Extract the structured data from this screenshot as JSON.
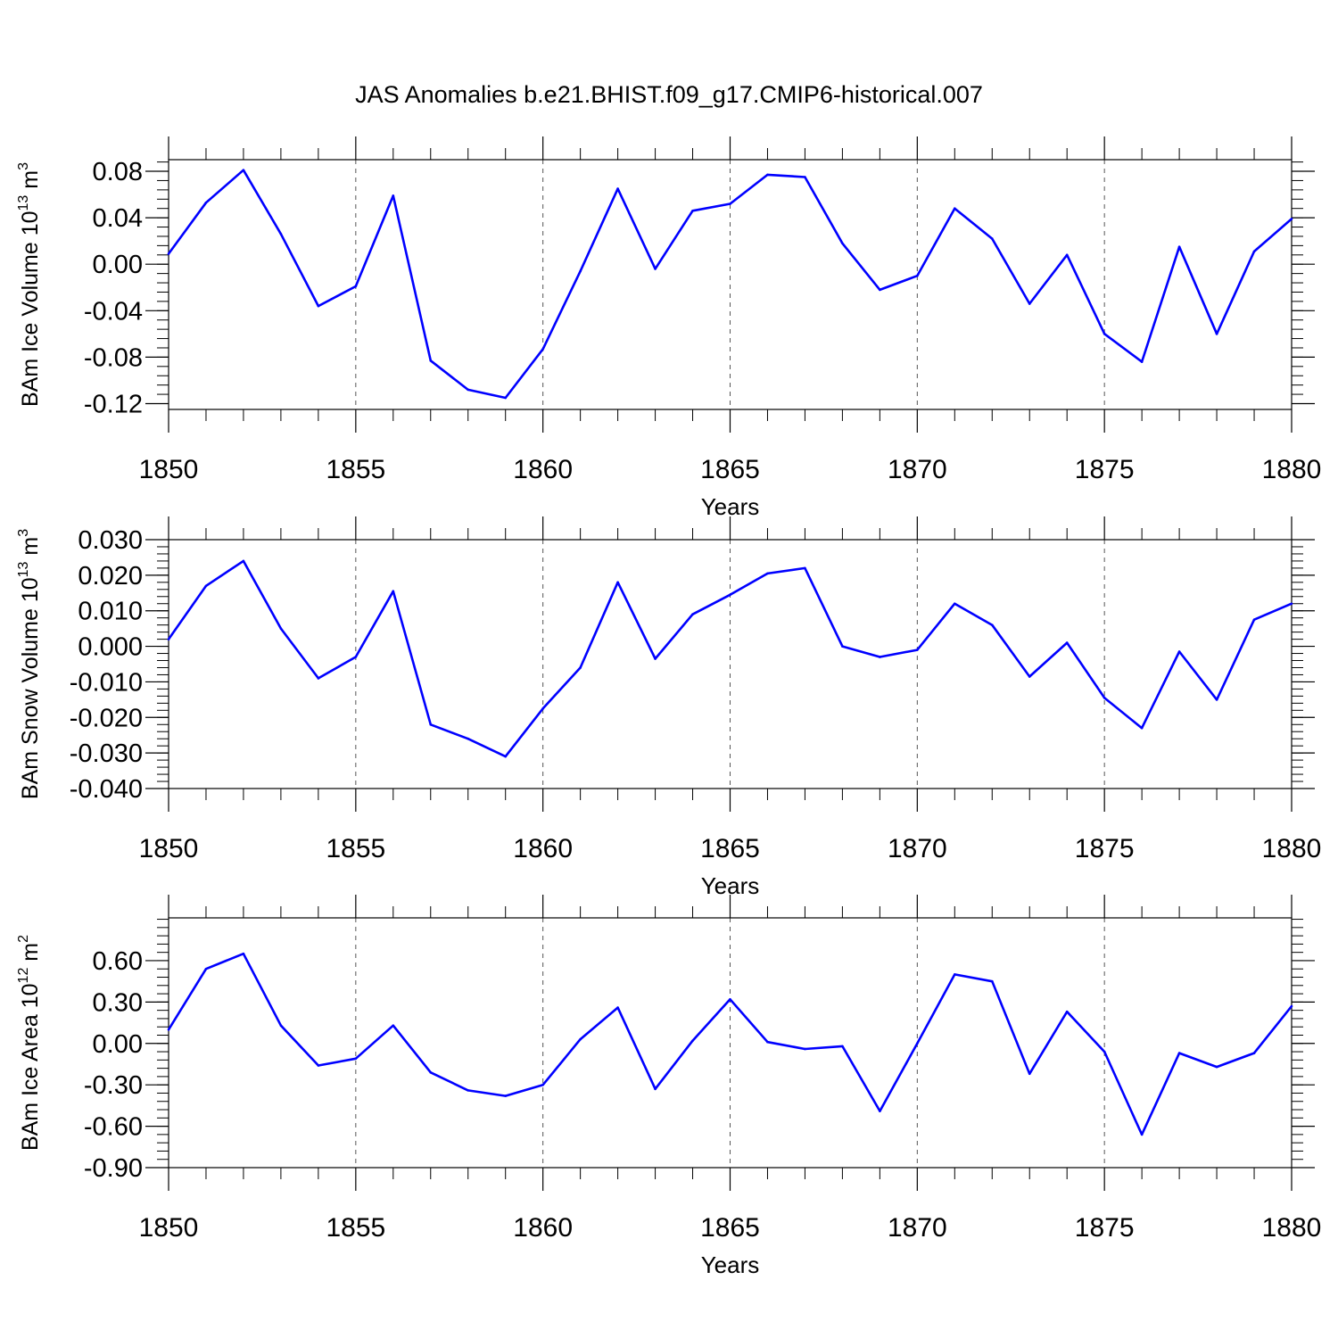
{
  "title": "JAS Anomalies b.e21.BHIST.f09_g17.CMIP6-historical.007",
  "colors": {
    "line": "#0000ff",
    "axis": "#000000",
    "grid": "#555555",
    "background": "#ffffff"
  },
  "chart_data": [
    {
      "type": "line",
      "ylabel_main": "BAm Ice Volume 10",
      "ylabel_exp": "13",
      "ylabel_unit": " m",
      "ylabel_unit_exp": "3",
      "xlabel": "Years",
      "xlim": [
        1850,
        1880
      ],
      "ylim": [
        -0.125,
        0.09
      ],
      "x_tick_values": [
        1850,
        1855,
        1860,
        1865,
        1870,
        1875,
        1880
      ],
      "x_tick_labels": [
        "1850",
        "1855",
        "1860",
        "1865",
        "1870",
        "1875",
        "1880"
      ],
      "y_tick_values": [
        -0.12,
        -0.08,
        -0.04,
        0.0,
        0.04,
        0.08
      ],
      "y_tick_labels": [
        "-0.12",
        "-0.08",
        "-0.04",
        "0.00",
        "0.04",
        "0.08"
      ],
      "y_minor_step": 0.008,
      "grid": "vertical dashed at major x ticks",
      "x": [
        1850,
        1851,
        1852,
        1853,
        1854,
        1855,
        1856,
        1857,
        1858,
        1859,
        1860,
        1861,
        1862,
        1863,
        1864,
        1865,
        1866,
        1867,
        1868,
        1869,
        1870,
        1871,
        1872,
        1873,
        1874,
        1875,
        1876,
        1877,
        1878,
        1879,
        1880
      ],
      "values": [
        0.009,
        0.053,
        0.081,
        0.026,
        -0.036,
        -0.019,
        0.059,
        -0.083,
        -0.108,
        -0.115,
        -0.073,
        -0.006,
        0.065,
        -0.004,
        0.046,
        0.052,
        0.077,
        0.075,
        0.018,
        -0.022,
        -0.01,
        0.048,
        0.022,
        -0.034,
        0.008,
        -0.06,
        -0.084,
        0.015,
        -0.06,
        0.011,
        0.039
      ]
    },
    {
      "type": "line",
      "ylabel_main": "BAm Snow Volume 10",
      "ylabel_exp": "13",
      "ylabel_unit": " m",
      "ylabel_unit_exp": "3",
      "xlabel": "Years",
      "xlim": [
        1850,
        1880
      ],
      "ylim": [
        -0.04,
        0.03
      ],
      "x_tick_values": [
        1850,
        1855,
        1860,
        1865,
        1870,
        1875,
        1880
      ],
      "x_tick_labels": [
        "1850",
        "1855",
        "1860",
        "1865",
        "1870",
        "1875",
        "1880"
      ],
      "y_tick_values": [
        -0.04,
        -0.03,
        -0.02,
        -0.01,
        0.0,
        0.01,
        0.02,
        0.03
      ],
      "y_tick_labels": [
        "-0.040",
        "-0.030",
        "-0.020",
        "-0.010",
        "0.000",
        "0.010",
        "0.020",
        "0.030"
      ],
      "y_minor_step": 0.002,
      "grid": "vertical dashed at major x ticks",
      "x": [
        1850,
        1851,
        1852,
        1853,
        1854,
        1855,
        1856,
        1857,
        1858,
        1859,
        1860,
        1861,
        1862,
        1863,
        1864,
        1865,
        1866,
        1867,
        1868,
        1869,
        1870,
        1871,
        1872,
        1873,
        1874,
        1875,
        1876,
        1877,
        1878,
        1879,
        1880
      ],
      "values": [
        0.002,
        0.017,
        0.024,
        0.005,
        -0.009,
        -0.003,
        0.0155,
        -0.022,
        -0.026,
        -0.031,
        -0.0175,
        -0.006,
        0.018,
        -0.0035,
        0.009,
        0.0145,
        0.0205,
        0.022,
        0.0,
        -0.003,
        -0.001,
        0.012,
        0.006,
        -0.0085,
        0.001,
        -0.0145,
        -0.023,
        -0.0015,
        -0.015,
        0.0075,
        0.012
      ]
    },
    {
      "type": "line",
      "ylabel_main": "BAm Ice Area 10",
      "ylabel_exp": "12",
      "ylabel_unit": " m",
      "ylabel_unit_exp": "2",
      "xlabel": "Years",
      "xlim": [
        1850,
        1880
      ],
      "ylim": [
        -0.9,
        0.91
      ],
      "x_tick_values": [
        1850,
        1855,
        1860,
        1865,
        1870,
        1875,
        1880
      ],
      "x_tick_labels": [
        "1850",
        "1855",
        "1860",
        "1865",
        "1870",
        "1875",
        "1880"
      ],
      "y_tick_values": [
        -0.9,
        -0.6,
        -0.3,
        0.0,
        0.3,
        0.6
      ],
      "y_tick_labels": [
        "-0.90",
        "-0.60",
        "-0.30",
        "0.00",
        "0.30",
        "0.60"
      ],
      "y_minor_step": 0.06,
      "grid": "vertical dashed at major x ticks",
      "x": [
        1850,
        1851,
        1852,
        1853,
        1854,
        1855,
        1856,
        1857,
        1858,
        1859,
        1860,
        1861,
        1862,
        1863,
        1864,
        1865,
        1866,
        1867,
        1868,
        1869,
        1870,
        1871,
        1872,
        1873,
        1874,
        1875,
        1876,
        1877,
        1878,
        1879,
        1880
      ],
      "values": [
        0.1,
        0.54,
        0.65,
        0.13,
        -0.16,
        -0.11,
        0.13,
        -0.21,
        -0.34,
        -0.38,
        -0.3,
        0.03,
        0.26,
        -0.33,
        0.02,
        0.32,
        0.01,
        -0.04,
        -0.02,
        -0.49,
        0.0,
        0.5,
        0.45,
        -0.22,
        0.23,
        -0.06,
        -0.66,
        -0.07,
        -0.17,
        -0.07,
        0.27
      ]
    }
  ]
}
